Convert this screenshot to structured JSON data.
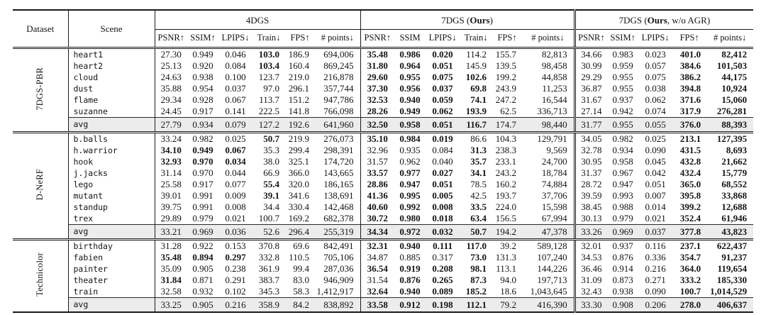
{
  "table": {
    "header": {
      "dataset": "Dataset",
      "scene": "Scene"
    },
    "groups": [
      {
        "title": {
          "prefix": "4DGS",
          "bold": "",
          "suffix": ""
        },
        "metrics": [
          "PSNR↑",
          "SSIM↑",
          "LPIPS↓",
          "Train↓",
          "FPS↑",
          "# points↓"
        ]
      },
      {
        "title": {
          "prefix": "7DGS (",
          "bold": "Ours",
          "suffix": ")"
        },
        "metrics": [
          "PSNR↑",
          "SSIM",
          "LPIPS↓",
          "Train↓",
          "FPS↑",
          "# points↓"
        ]
      },
      {
        "title": {
          "prefix": "7DGS (",
          "bold": "Ours",
          "suffix": ", w/o AGR)"
        },
        "metrics": [
          "PSNR↑",
          "SSIM↑",
          "LPIPS↓",
          "FPS↑",
          "# points↓"
        ]
      }
    ],
    "sections": [
      {
        "label": "7DGS-PBR",
        "rows": [
          {
            "scene": "heart1",
            "values": [
              "27.30",
              "0.949",
              "0.046",
              "103.0",
              "186.9",
              "694,006",
              "35.48",
              "0.986",
              "0.020",
              "114.2",
              "155.7",
              "82,813",
              "34.66",
              "0.983",
              "0.023",
              "401.0",
              "82,412"
            ],
            "bold": [
              3,
              6,
              7,
              8,
              15,
              16
            ]
          },
          {
            "scene": "heart2",
            "values": [
              "25.13",
              "0.920",
              "0.084",
              "103.4",
              "160.4",
              "869,245",
              "31.80",
              "0.964",
              "0.051",
              "145.9",
              "139.5",
              "98,458",
              "30.99",
              "0.959",
              "0.057",
              "384.6",
              "101,503"
            ],
            "bold": [
              3,
              6,
              7,
              8,
              15,
              16
            ]
          },
          {
            "scene": "cloud",
            "values": [
              "24.63",
              "0.938",
              "0.100",
              "123.7",
              "219.0",
              "216,878",
              "29.60",
              "0.955",
              "0.075",
              "102.6",
              "199.2",
              "44,858",
              "29.29",
              "0.955",
              "0.075",
              "386.2",
              "44,175"
            ],
            "bold": [
              6,
              7,
              8,
              9,
              15,
              16
            ]
          },
          {
            "scene": "dust",
            "values": [
              "35.88",
              "0.954",
              "0.037",
              "97.0",
              "296.1",
              "357,744",
              "37.30",
              "0.956",
              "0.037",
              "69.8",
              "243.9",
              "11,253",
              "36.87",
              "0.955",
              "0.038",
              "394.8",
              "10,924"
            ],
            "bold": [
              6,
              7,
              8,
              9,
              15,
              16
            ]
          },
          {
            "scene": "flame",
            "values": [
              "29.34",
              "0.928",
              "0.067",
              "113.7",
              "151.2",
              "947,786",
              "32.53",
              "0.940",
              "0.059",
              "74.1",
              "247.2",
              "16,544",
              "31.67",
              "0.937",
              "0.062",
              "371.6",
              "15,060"
            ],
            "bold": [
              6,
              7,
              8,
              9,
              15,
              16
            ]
          },
          {
            "scene": "suzanne",
            "values": [
              "24.45",
              "0.917",
              "0.141",
              "222.5",
              "141.8",
              "766,098",
              "28.26",
              "0.949",
              "0.062",
              "193.9",
              "62.5",
              "336,713",
              "27.14",
              "0.942",
              "0.074",
              "317.9",
              "276,281"
            ],
            "bold": [
              6,
              7,
              8,
              9,
              15,
              16
            ]
          }
        ],
        "avg": {
          "scene": "avg",
          "values": [
            "27.79",
            "0.934",
            "0.079",
            "127.2",
            "192.6",
            "641,960",
            "32.50",
            "0.958",
            "0.051",
            "116.7",
            "174.7",
            "98,440",
            "31.77",
            "0.955",
            "0.055",
            "376.0",
            "88,393"
          ],
          "bold": [
            6,
            7,
            8,
            9,
            15,
            16
          ]
        }
      },
      {
        "label": "D-NeRF",
        "rows": [
          {
            "scene": "b.balls",
            "values": [
              "33.24",
              "0.982",
              "0.025",
              "50.7",
              "219.9",
              "276,073",
              "35.10",
              "0.984",
              "0.019",
              "86.6",
              "104.3",
              "129,791",
              "34.05",
              "0.982",
              "0.025",
              "213.1",
              "127,395"
            ],
            "bold": [
              3,
              6,
              7,
              8,
              15,
              16
            ]
          },
          {
            "scene": "h.warrior",
            "values": [
              "34.10",
              "0.949",
              "0.067",
              "35.3",
              "299.4",
              "298,391",
              "32.96",
              "0.935",
              "0.084",
              "31.3",
              "238.3",
              "9,569",
              "32.78",
              "0.934",
              "0.090",
              "431.5",
              "8,693"
            ],
            "bold": [
              0,
              1,
              2,
              9,
              15,
              16
            ]
          },
          {
            "scene": "hook",
            "values": [
              "32.93",
              "0.970",
              "0.034",
              "38.0",
              "325.1",
              "174,720",
              "31.57",
              "0.962",
              "0.040",
              "35.7",
              "233.1",
              "24,700",
              "30.95",
              "0.958",
              "0.045",
              "432.8",
              "21,662"
            ],
            "bold": [
              0,
              1,
              2,
              9,
              15,
              16
            ]
          },
          {
            "scene": "j.jacks",
            "values": [
              "31.14",
              "0.970",
              "0.044",
              "66.9",
              "366.0",
              "143,665",
              "33.57",
              "0.977",
              "0.027",
              "34.1",
              "243.2",
              "18,784",
              "31.37",
              "0.967",
              "0.042",
              "432.4",
              "15,779"
            ],
            "bold": [
              6,
              7,
              8,
              9,
              15,
              16
            ]
          },
          {
            "scene": "lego",
            "values": [
              "25.58",
              "0.917",
              "0.077",
              "55.4",
              "320.0",
              "186,165",
              "28.86",
              "0.947",
              "0.051",
              "78.5",
              "160.2",
              "74,884",
              "28.72",
              "0.947",
              "0.051",
              "365.0",
              "68,552"
            ],
            "bold": [
              3,
              6,
              7,
              8,
              15,
              16
            ]
          },
          {
            "scene": "mutant",
            "values": [
              "39.01",
              "0.991",
              "0.009",
              "39.1",
              "341.6",
              "138,691",
              "41.36",
              "0.995",
              "0.005",
              "42.5",
              "193.7",
              "37,706",
              "39.59",
              "0.993",
              "0.007",
              "395.8",
              "33,868"
            ],
            "bold": [
              3,
              6,
              7,
              8,
              15,
              16
            ]
          },
          {
            "scene": "standup",
            "values": [
              "39.75",
              "0.991",
              "0.008",
              "34.4",
              "330.4",
              "142,468",
              "40.60",
              "0.992",
              "0.008",
              "33.5",
              "224.0",
              "15,598",
              "38.45",
              "0.988",
              "0.014",
              "399.2",
              "12,688"
            ],
            "bold": [
              6,
              7,
              8,
              9,
              15,
              16
            ]
          },
          {
            "scene": "trex",
            "values": [
              "29.89",
              "0.979",
              "0.021",
              "100.7",
              "169.2",
              "682,378",
              "30.72",
              "0.980",
              "0.018",
              "63.4",
              "156.5",
              "67,994",
              "30.13",
              "0.979",
              "0.021",
              "352.4",
              "61,946"
            ],
            "bold": [
              6,
              7,
              8,
              9,
              15,
              16
            ]
          }
        ],
        "avg": {
          "scene": "avg",
          "values": [
            "33.21",
            "0.969",
            "0.036",
            "52.6",
            "296.4",
            "255,319",
            "34.34",
            "0.972",
            "0.032",
            "50.7",
            "194.2",
            "47,378",
            "33.26",
            "0.969",
            "0.037",
            "377.8",
            "43,823"
          ],
          "bold": [
            6,
            7,
            8,
            9,
            15,
            16
          ]
        }
      },
      {
        "label": "Technicolor",
        "rows": [
          {
            "scene": "birthday",
            "values": [
              "31.28",
              "0.922",
              "0.153",
              "370.8",
              "69.6",
              "842,491",
              "32.31",
              "0.940",
              "0.111",
              "117.0",
              "39.2",
              "589,128",
              "32.01",
              "0.937",
              "0.116",
              "237.1",
              "622,437"
            ],
            "bold": [
              6,
              7,
              8,
              9,
              15,
              16
            ]
          },
          {
            "scene": "fabien",
            "values": [
              "35.48",
              "0.894",
              "0.297",
              "332.8",
              "110.5",
              "705,106",
              "34.87",
              "0.885",
              "0.317",
              "73.0",
              "131.3",
              "107,240",
              "34.53",
              "0.876",
              "0.336",
              "354.7",
              "91,237"
            ],
            "bold": [
              0,
              1,
              2,
              9,
              15,
              16
            ]
          },
          {
            "scene": "painter",
            "values": [
              "35.09",
              "0.905",
              "0.238",
              "361.9",
              "99.4",
              "287,036",
              "36.54",
              "0.919",
              "0.208",
              "98.1",
              "113.1",
              "144,226",
              "36.46",
              "0.914",
              "0.216",
              "364.0",
              "119,654"
            ],
            "bold": [
              6,
              7,
              8,
              9,
              15,
              16
            ]
          },
          {
            "scene": "theater",
            "values": [
              "31.84",
              "0.871",
              "0.291",
              "383.7",
              "83.0",
              "946,909",
              "31.54",
              "0.876",
              "0.265",
              "87.3",
              "94.0",
              "197,713",
              "31.09",
              "0.873",
              "0.271",
              "333.2",
              "185,330"
            ],
            "bold": [
              0,
              7,
              8,
              9,
              15,
              16
            ]
          },
          {
            "scene": "train",
            "values": [
              "32.58",
              "0.932",
              "0.102",
              "345.3",
              "58.3",
              "1,412,917",
              "32.64",
              "0.940",
              "0.089",
              "185.2",
              "18.6",
              "1,043,645",
              "32.43",
              "0.938",
              "0.090",
              "100.7",
              "1,014,529"
            ],
            "bold": [
              6,
              7,
              8,
              9,
              15,
              16
            ]
          }
        ],
        "avg": {
          "scene": "avg",
          "values": [
            "33.25",
            "0.905",
            "0.216",
            "358.9",
            "84.2",
            "838,892",
            "33.58",
            "0.912",
            "0.198",
            "112.1",
            "79.2",
            "416,390",
            "33.30",
            "0.908",
            "0.206",
            "278.0",
            "406,637"
          ],
          "bold": [
            6,
            7,
            8,
            9,
            15,
            16
          ]
        }
      }
    ]
  }
}
